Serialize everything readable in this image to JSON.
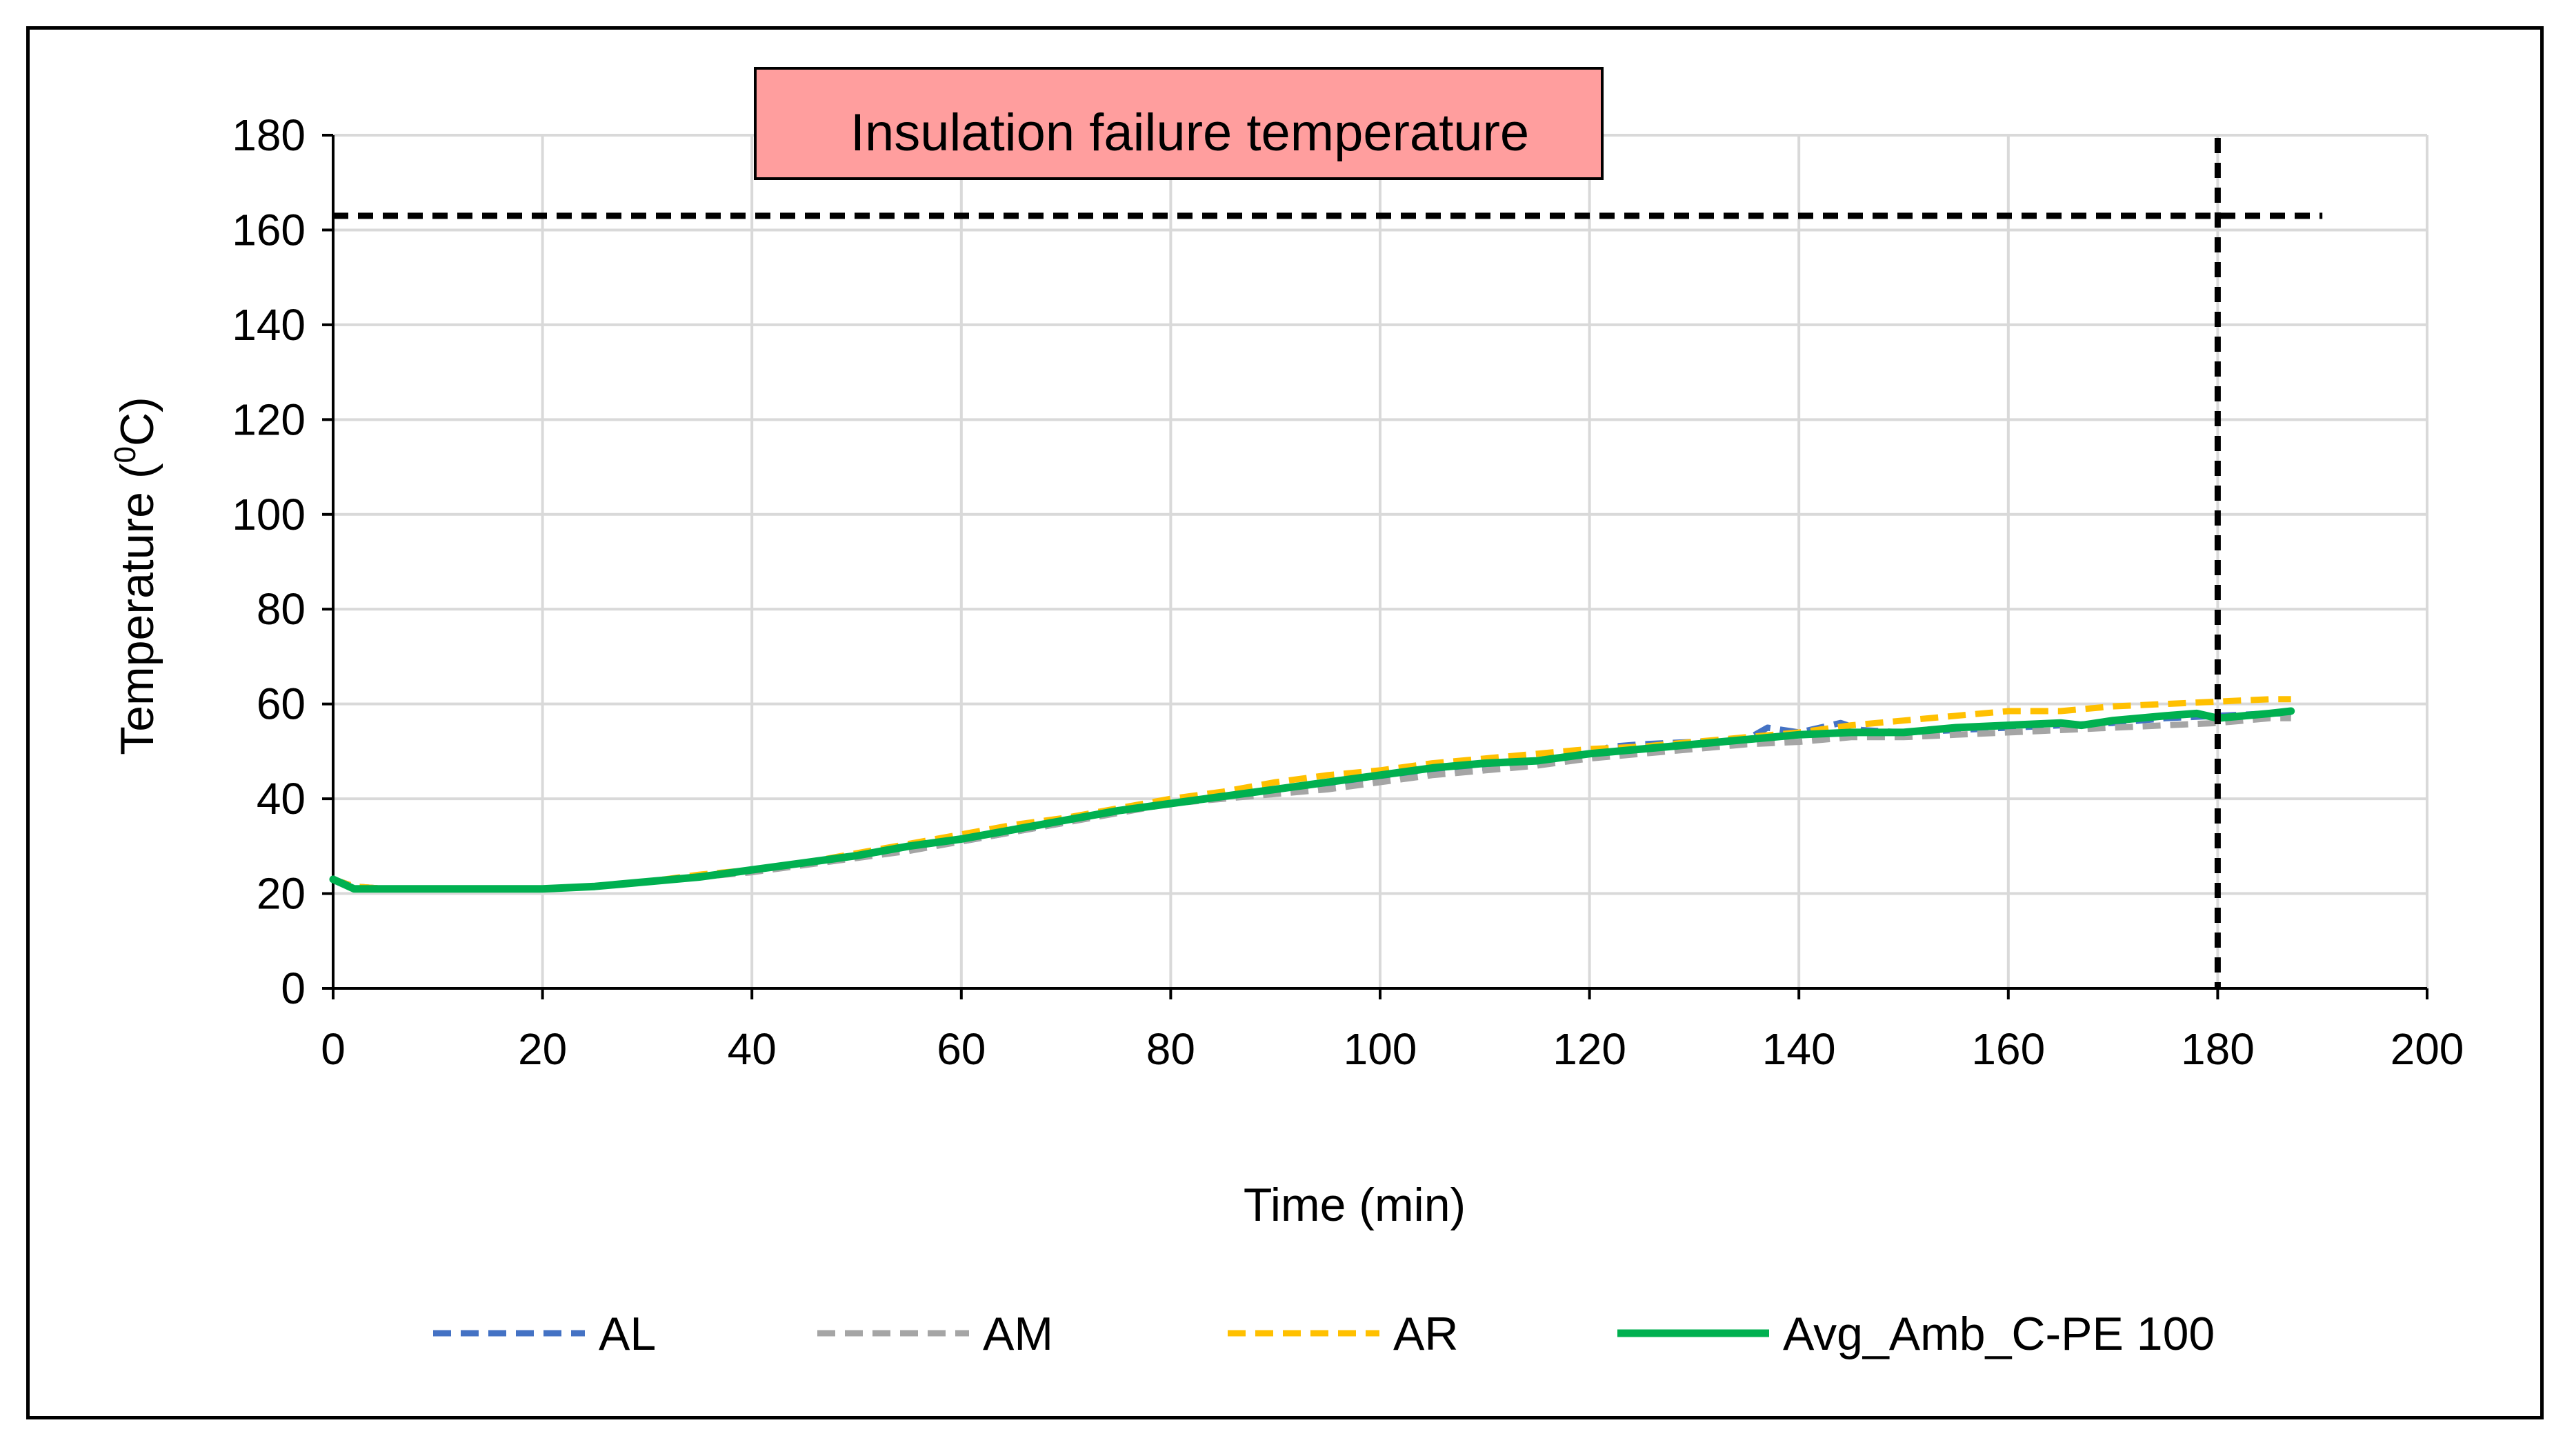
{
  "chart_data": {
    "type": "line",
    "title": "",
    "xlabel": "Time (min)",
    "ylabel": "Temperature (0C)",
    "ylabel_parts": {
      "before": "Temperature (",
      "superscript": "0",
      "after": "C)"
    },
    "xlim": [
      0,
      200
    ],
    "ylim": [
      0,
      180
    ],
    "xticks": [
      "0",
      "20",
      "40",
      "60",
      "80",
      "100",
      "120",
      "140",
      "160",
      "180",
      "200"
    ],
    "yticks": [
      "0",
      "20",
      "40",
      "60",
      "80",
      "100",
      "120",
      "140",
      "160",
      "180"
    ],
    "grid": true,
    "legend_position": "bottom",
    "annotation": {
      "text": "Insulation failure temperature",
      "fill": "#FF9E9E",
      "failure_temperature": 163,
      "failure_time": 180
    },
    "series": [
      {
        "name": "AL",
        "color": "#4472C4",
        "dash": "dashed",
        "x": [
          0,
          2,
          5,
          10,
          20,
          25,
          30,
          35,
          40,
          45,
          50,
          55,
          60,
          65,
          70,
          75,
          80,
          85,
          90,
          95,
          100,
          105,
          110,
          115,
          120,
          122,
          125,
          130,
          135,
          137,
          140,
          142,
          144,
          146,
          150,
          155,
          160,
          165,
          170,
          175,
          180,
          185,
          187
        ],
        "y": [
          23,
          21.5,
          21,
          21,
          21,
          21.5,
          22.5,
          23.5,
          25,
          26.5,
          28,
          29.5,
          31,
          33,
          35,
          37.5,
          39,
          40.5,
          42,
          43,
          44.5,
          45.5,
          46.5,
          47.5,
          49.5,
          51,
          51.5,
          52,
          52.5,
          55,
          54,
          55,
          56,
          54.5,
          54,
          54.5,
          55,
          55.5,
          56,
          57,
          57.5,
          58,
          58
        ]
      },
      {
        "name": "AM",
        "color": "#A5A5A5",
        "dash": "dashed",
        "x": [
          0,
          2,
          5,
          10,
          20,
          25,
          30,
          35,
          40,
          45,
          50,
          55,
          60,
          65,
          70,
          75,
          80,
          85,
          90,
          95,
          100,
          105,
          110,
          115,
          120,
          125,
          130,
          135,
          140,
          145,
          150,
          155,
          160,
          165,
          170,
          175,
          180,
          185,
          187
        ],
        "y": [
          23,
          21.5,
          21,
          21,
          21,
          21.5,
          22.5,
          23.5,
          24.5,
          26,
          27.5,
          29,
          31,
          33,
          35,
          37,
          39,
          40,
          41,
          42,
          43.5,
          45,
          46,
          47,
          48.5,
          49.5,
          50.5,
          51.5,
          52,
          53,
          53,
          53.5,
          54,
          54.5,
          55,
          55.5,
          56,
          57,
          57
        ]
      },
      {
        "name": "AR",
        "color": "#FFC000",
        "dash": "dashed",
        "x": [
          0,
          2,
          5,
          10,
          20,
          25,
          30,
          35,
          40,
          45,
          50,
          55,
          60,
          65,
          70,
          75,
          80,
          85,
          90,
          95,
          100,
          105,
          110,
          115,
          120,
          125,
          130,
          135,
          140,
          145,
          150,
          155,
          160,
          165,
          170,
          175,
          180,
          185,
          187
        ],
        "y": [
          23,
          21.5,
          21,
          21,
          21,
          21.5,
          22.5,
          24,
          25,
          26.5,
          28.5,
          30.5,
          32.5,
          34.5,
          36,
          38,
          40,
          41.5,
          43.5,
          45,
          46,
          47.5,
          48.5,
          49.5,
          50.5,
          51,
          52,
          53,
          54,
          55.5,
          56.5,
          57.5,
          58.5,
          58.5,
          59.5,
          60,
          60.5,
          61,
          61
        ]
      },
      {
        "name": "Avg_Amb_C-PE 100",
        "color": "#00B050",
        "dash": "solid",
        "x": [
          0,
          2,
          5,
          10,
          20,
          25,
          30,
          35,
          40,
          45,
          50,
          55,
          60,
          65,
          70,
          75,
          80,
          85,
          90,
          95,
          100,
          105,
          110,
          115,
          120,
          125,
          130,
          135,
          140,
          145,
          150,
          155,
          160,
          165,
          167,
          170,
          175,
          178,
          180,
          185,
          187
        ],
        "y": [
          23,
          21,
          21,
          21,
          21,
          21.5,
          22.5,
          23.5,
          25,
          26.5,
          28,
          30,
          31.5,
          33.5,
          35.5,
          37.5,
          39,
          40.5,
          42,
          43.5,
          45,
          46.5,
          47.5,
          48,
          49.5,
          50.5,
          51.5,
          52.5,
          53.5,
          54,
          54,
          55,
          55.5,
          56,
          55.5,
          56.5,
          57.5,
          58,
          57,
          58,
          58.5
        ]
      }
    ]
  }
}
